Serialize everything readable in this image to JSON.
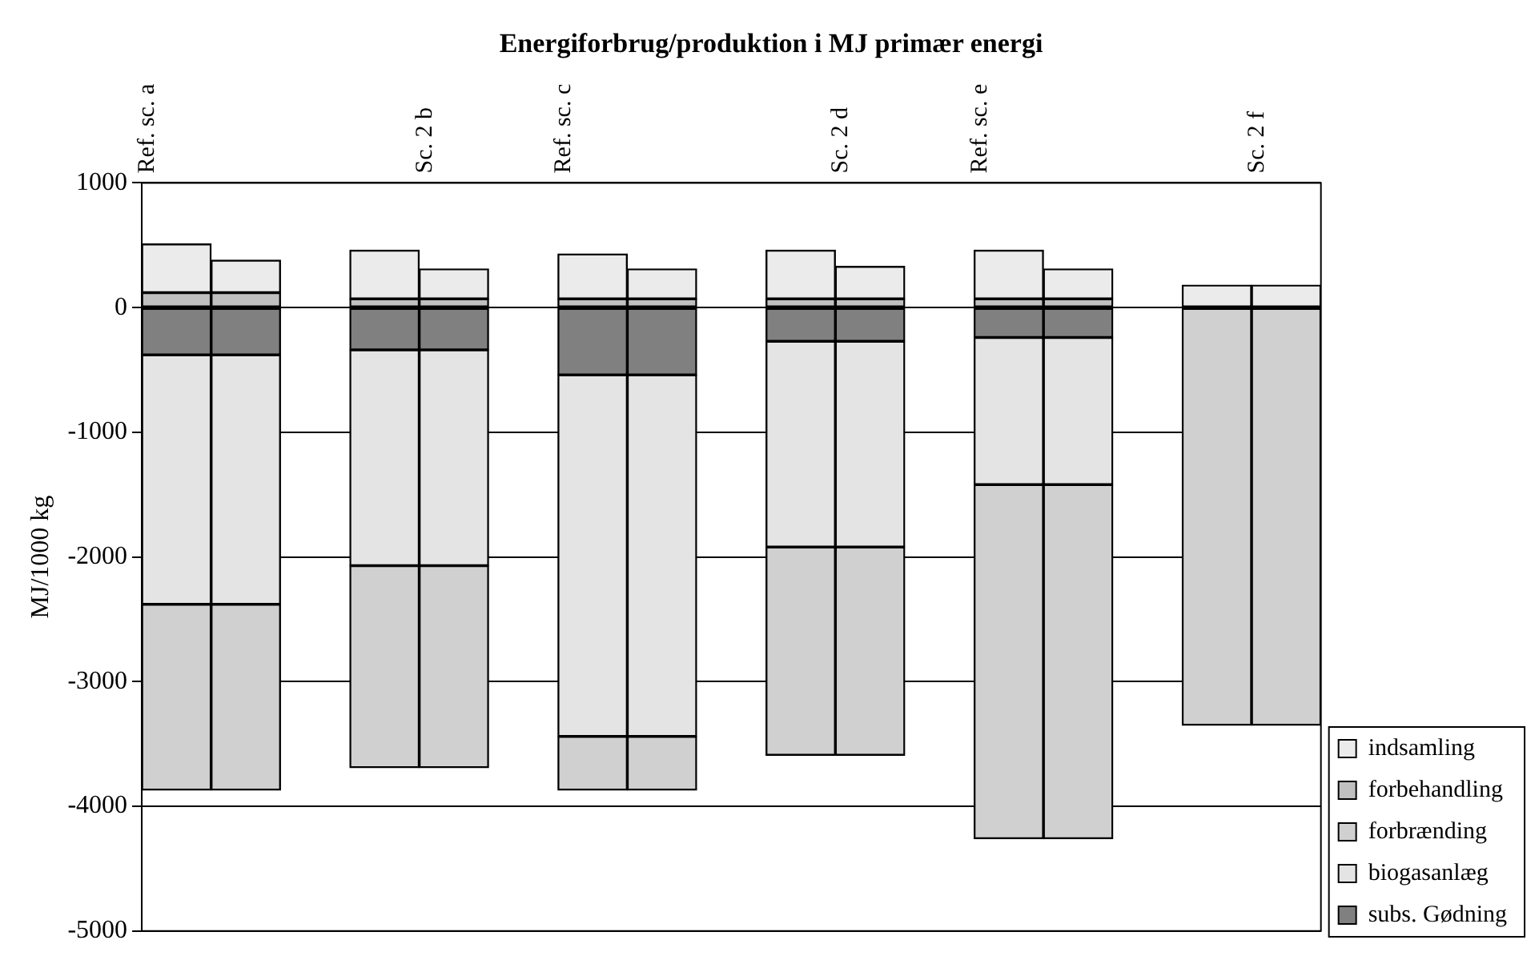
{
  "chart_data": {
    "type": "bar",
    "title": "Energiforbrug/produktion i MJ primær energi",
    "ylabel": "MJ/1000 kg",
    "categories": [
      "Ref. sc. a",
      null,
      null,
      null,
      "Sc. 2 b",
      null,
      "Ref. sc. c",
      null,
      null,
      null,
      "Sc. 2 d",
      null,
      "Ref. sc. e",
      null,
      null,
      null,
      "Sc. 2 f"
    ],
    "stacked": true,
    "series": [
      {
        "name": "subs. Gødning",
        "color": "#808080",
        "values": [
          -380,
          -380,
          null,
          -340,
          -340,
          null,
          -540,
          -540,
          null,
          -270,
          -270,
          null,
          -240,
          -240,
          null,
          null,
          null
        ]
      },
      {
        "name": "biogasanlæg",
        "color": "#e4e4e4",
        "values": [
          -2000,
          -2000,
          null,
          -1730,
          -1730,
          null,
          -2900,
          -2900,
          null,
          -1650,
          -1650,
          null,
          -1180,
          -1180,
          null,
          null,
          null
        ]
      },
      {
        "name": "forbrænding",
        "color": "#d0d0d0",
        "values": [
          -1490,
          -1490,
          null,
          -1620,
          -1620,
          null,
          -430,
          -430,
          null,
          -1670,
          -1670,
          null,
          -2840,
          -2840,
          null,
          -3350,
          -3350
        ]
      },
      {
        "name": "forbehandling",
        "color": "#c0c0c0",
        "values": [
          120,
          120,
          null,
          70,
          70,
          null,
          70,
          70,
          null,
          70,
          70,
          null,
          70,
          70,
          null,
          null,
          null
        ]
      },
      {
        "name": "indsamling",
        "color": "#ebebeb",
        "values": [
          390,
          260,
          null,
          390,
          240,
          null,
          360,
          240,
          null,
          390,
          260,
          null,
          390,
          240,
          null,
          180,
          180
        ]
      }
    ],
    "ylim": [
      -5000,
      1000
    ],
    "yticks": [
      -5000,
      -4000,
      -3000,
      -2000,
      -1000,
      0,
      1000
    ],
    "grid": "y",
    "legend": "bottom right"
  }
}
